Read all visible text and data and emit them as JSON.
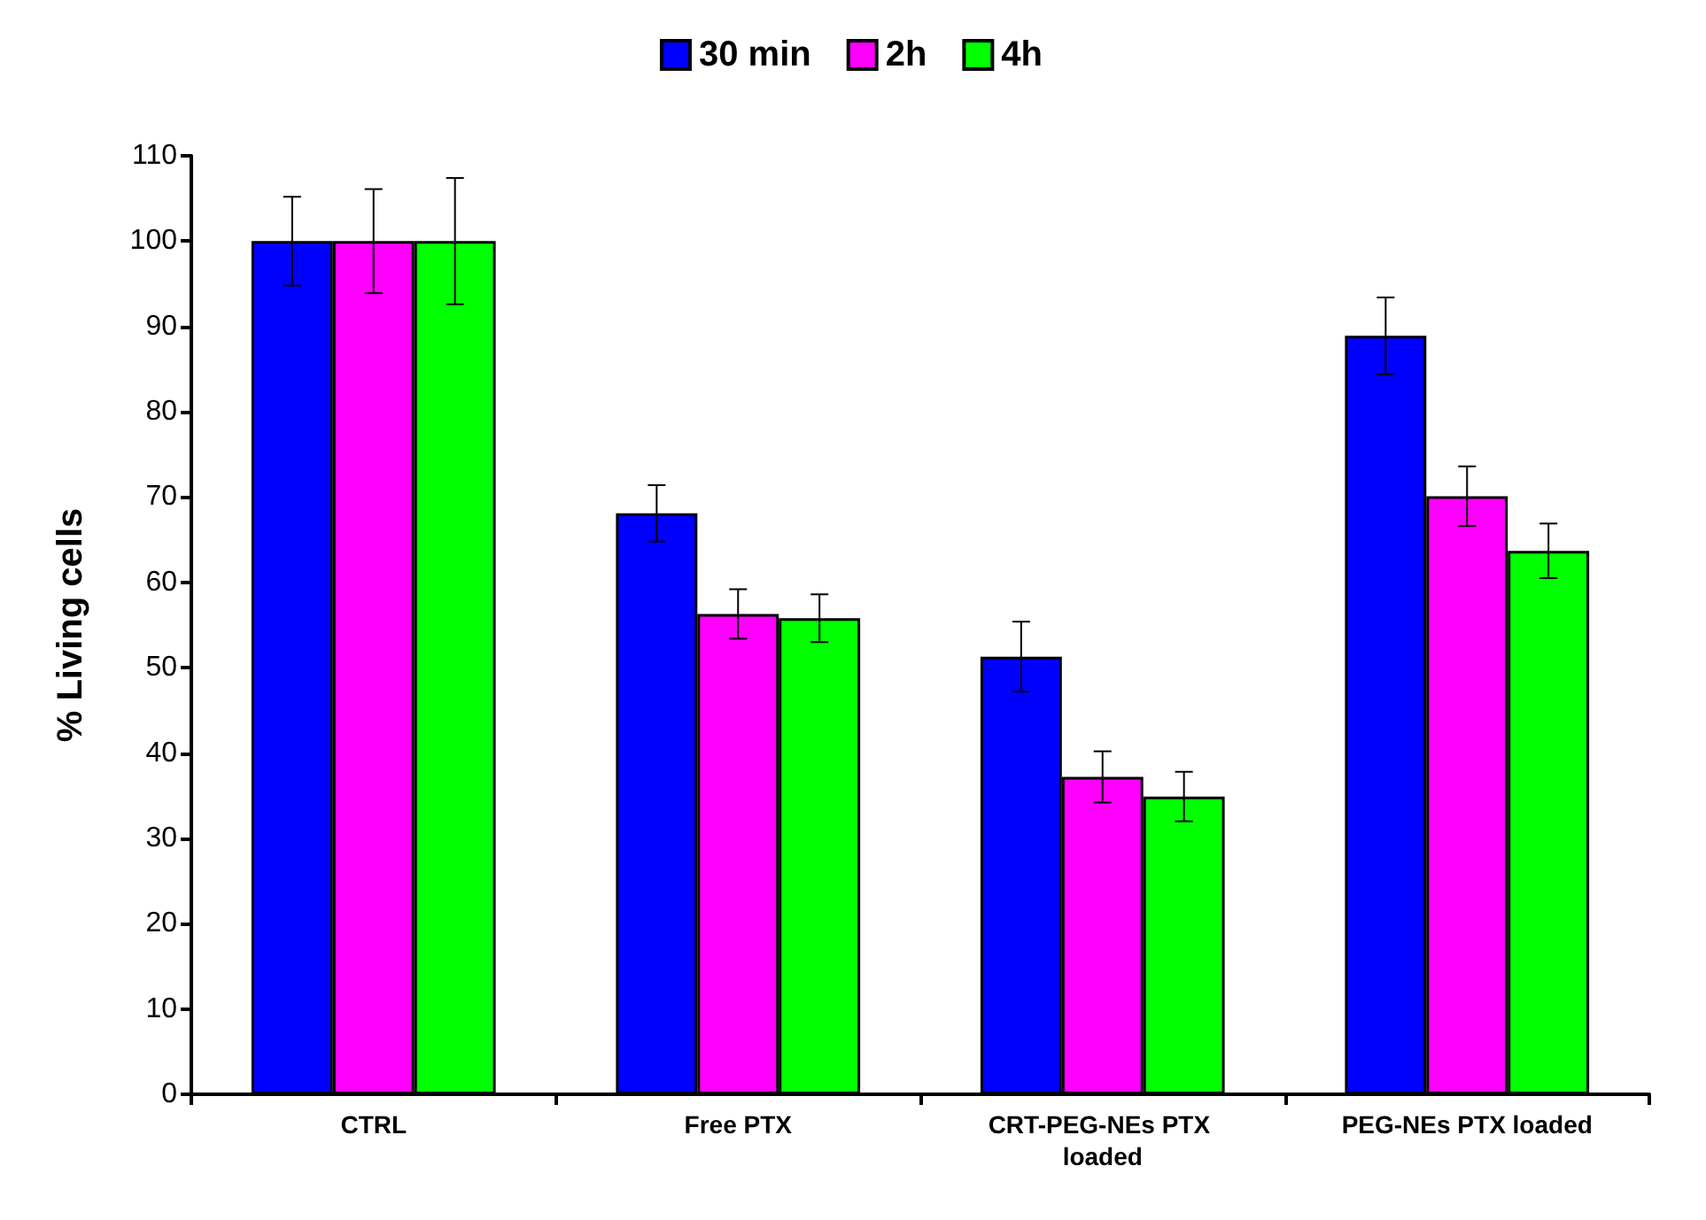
{
  "chart_data": {
    "type": "bar",
    "ylabel": "% Living cells",
    "categories": [
      "CTRL",
      "Free PTX",
      "CRT-PEG-NEs PTX loaded",
      "PEG-NEs PTX loaded"
    ],
    "series": [
      {
        "name": "30 min",
        "color": "#0000ff",
        "values": [
          100,
          68.1,
          51.3,
          88.9
        ],
        "errors": [
          5.2,
          3.3,
          4.1,
          4.5
        ]
      },
      {
        "name": "2h",
        "color": "#ff00ff",
        "values": [
          100,
          56.3,
          37.2,
          70.1
        ],
        "errors": [
          6.1,
          2.9,
          3.0,
          3.5
        ]
      },
      {
        "name": "4h",
        "color": "#00ff00",
        "values": [
          100,
          55.8,
          34.9,
          63.7
        ],
        "errors": [
          7.4,
          2.8,
          2.9,
          3.2
        ]
      }
    ],
    "ylim": [
      0,
      110
    ],
    "yticks": [
      0,
      10,
      20,
      30,
      40,
      50,
      60,
      70,
      80,
      90,
      100,
      110
    ],
    "grid": false,
    "legend": "top"
  }
}
